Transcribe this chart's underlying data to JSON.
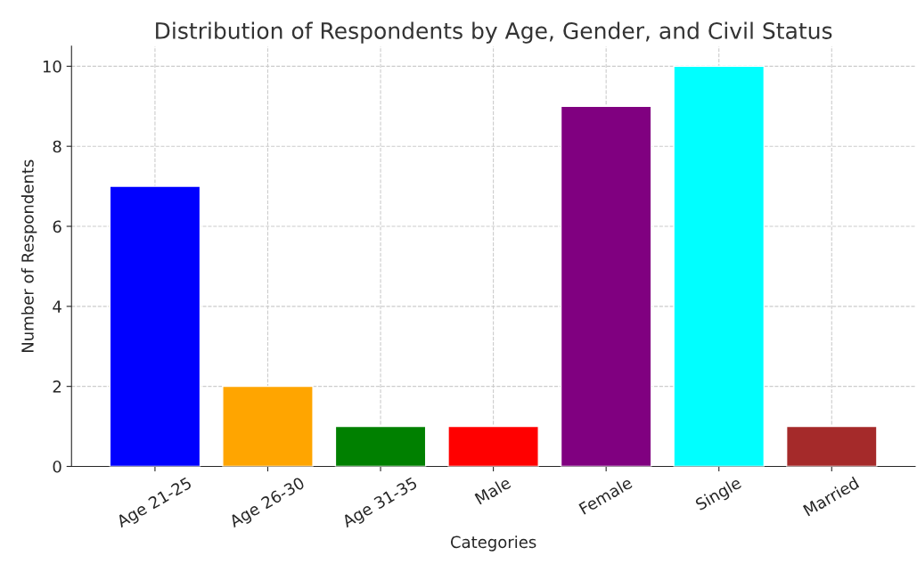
{
  "chart_data": {
    "type": "bar",
    "title": "Distribution of Respondents by Age, Gender, and Civil Status",
    "xlabel": "Categories",
    "ylabel": "Number of Respondents",
    "categories": [
      "Age 21-25",
      "Age 26-30",
      "Age 31-35",
      "Male",
      "Female",
      "Single",
      "Married"
    ],
    "values": [
      7,
      2,
      1,
      1,
      9,
      10,
      1
    ],
    "colors": [
      "#0000ff",
      "#ffa500",
      "#008000",
      "#ff0000",
      "#800080",
      "#00ffff",
      "#a52a2a"
    ],
    "ylim": [
      0,
      10.5
    ],
    "yticks": [
      0,
      2,
      4,
      6,
      8,
      10
    ],
    "grid": true
  }
}
